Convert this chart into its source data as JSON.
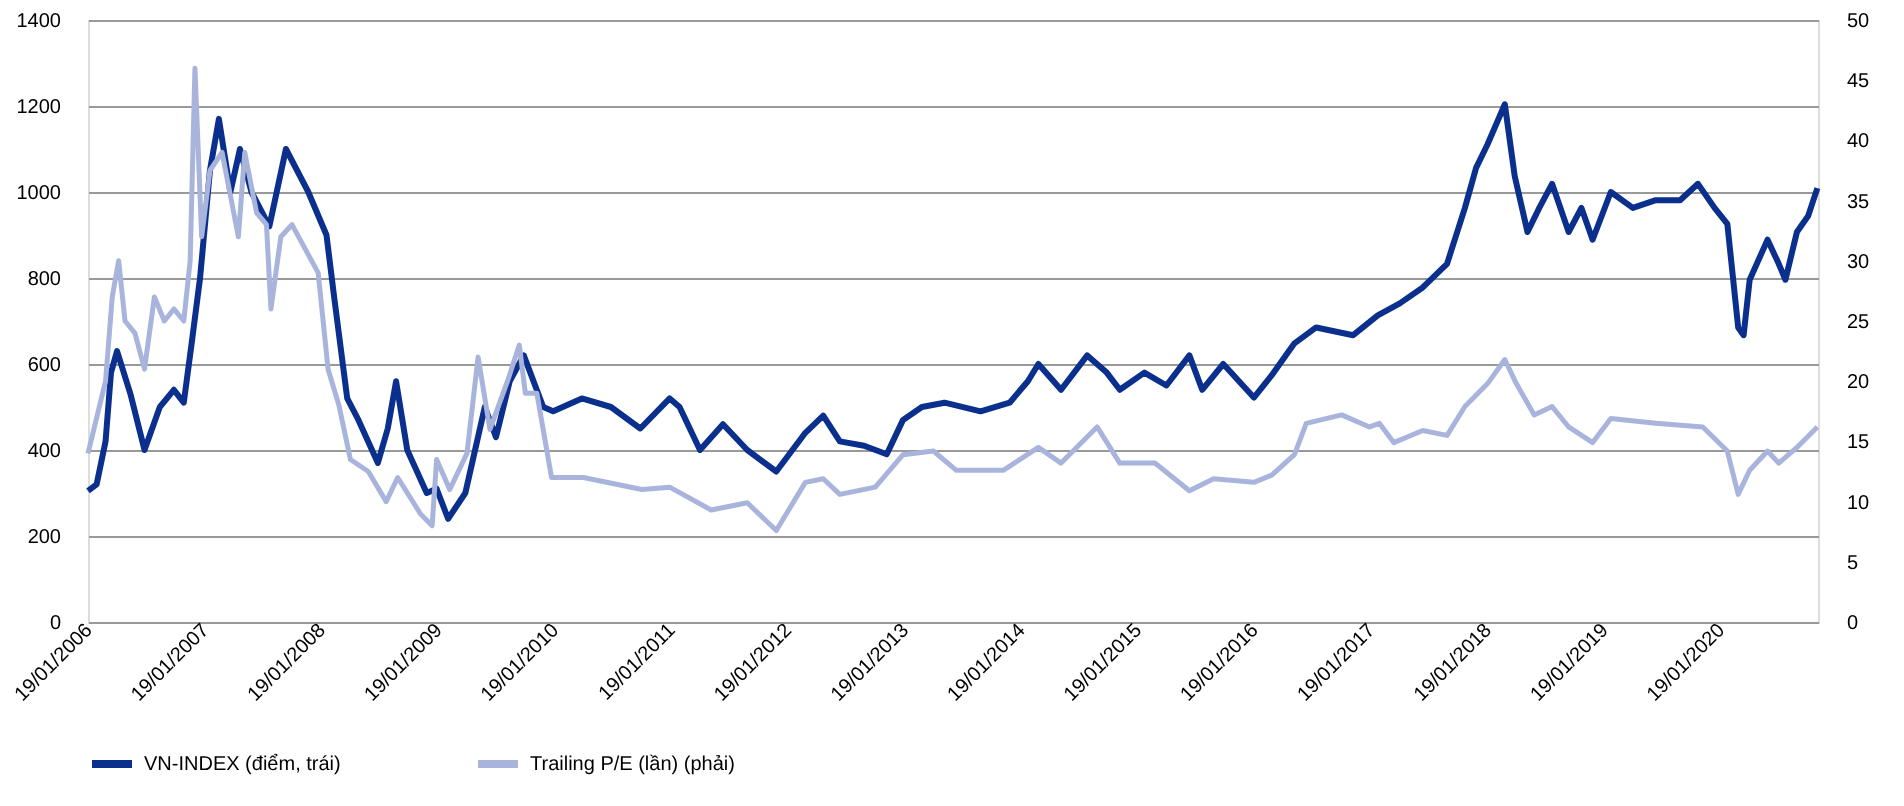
{
  "chart_data": {
    "type": "line",
    "legend": "bottom",
    "grid": "y",
    "line_style": "solid",
    "marker": "none",
    "xlim": [
      "2006-01-19",
      "2020-11-20"
    ],
    "xticks": [
      {
        "value": "2006-01-19",
        "label": "19/01/2006"
      },
      {
        "value": "2007-01-19",
        "label": "19/01/2007"
      },
      {
        "value": "2008-01-19",
        "label": "19/01/2008"
      },
      {
        "value": "2009-01-19",
        "label": "19/01/2009"
      },
      {
        "value": "2010-01-19",
        "label": "19/01/2010"
      },
      {
        "value": "2011-01-19",
        "label": "19/01/2011"
      },
      {
        "value": "2012-01-19",
        "label": "19/01/2012"
      },
      {
        "value": "2013-01-19",
        "label": "19/01/2013"
      },
      {
        "value": "2014-01-19",
        "label": "19/01/2014"
      },
      {
        "value": "2015-01-19",
        "label": "19/01/2015"
      },
      {
        "value": "2016-01-19",
        "label": "19/01/2016"
      },
      {
        "value": "2017-01-19",
        "label": "19/01/2017"
      },
      {
        "value": "2018-01-19",
        "label": "19/01/2018"
      },
      {
        "value": "2019-01-19",
        "label": "19/01/2019"
      },
      {
        "value": "2020-01-19",
        "label": "19/01/2020"
      }
    ],
    "ylim": [
      0,
      1400
    ],
    "yticks": [
      0,
      200,
      400,
      600,
      800,
      1000,
      1200,
      1400
    ],
    "y2lim": [
      0,
      50
    ],
    "y2ticks": [
      0,
      5,
      10,
      15,
      20,
      25,
      30,
      35,
      40,
      45,
      50
    ],
    "series": [
      {
        "name": "VN-INDEX (điểm, trái)",
        "color": "#0a2f8c",
        "axis": "y",
        "x": [
          "2006-01-19",
          "2006-02-15",
          "2006-03-15",
          "2006-04-01",
          "2006-04-20",
          "2006-06-01",
          "2006-07-15",
          "2006-09-01",
          "2006-10-15",
          "2006-11-15",
          "2006-12-10",
          "2007-01-05",
          "2007-02-05",
          "2007-03-05",
          "2007-04-10",
          "2007-05-10",
          "2007-06-15",
          "2007-08-10",
          "2007-10-01",
          "2007-12-10",
          "2008-02-05",
          "2008-03-01",
          "2008-04-10",
          "2008-05-15",
          "2008-07-15",
          "2008-08-15",
          "2008-09-10",
          "2008-10-15",
          "2008-12-15",
          "2009-01-15",
          "2009-02-20",
          "2009-04-15",
          "2009-06-15",
          "2009-07-20",
          "2009-09-01",
          "2009-10-15",
          "2009-12-15",
          "2010-01-15",
          "2010-04-15",
          "2010-07-15",
          "2010-10-15",
          "2011-01-15",
          "2011-02-15",
          "2011-04-20",
          "2011-07-01",
          "2011-09-15",
          "2011-12-15",
          "2012-03-15",
          "2012-05-10",
          "2012-07-01",
          "2012-09-15",
          "2012-11-25",
          "2013-01-15",
          "2013-03-15",
          "2013-05-25",
          "2013-09-15",
          "2013-12-15",
          "2014-02-10",
          "2014-03-15",
          "2014-05-25",
          "2014-08-15",
          "2014-10-15",
          "2014-11-25",
          "2015-02-10",
          "2015-04-20",
          "2015-07-01",
          "2015-08-10",
          "2015-10-15",
          "2016-01-19",
          "2016-03-15",
          "2016-05-25",
          "2016-08-01",
          "2016-11-25",
          "2017-02-10",
          "2017-04-20",
          "2017-07-01",
          "2017-09-15",
          "2017-11-10",
          "2017-12-15",
          "2018-01-20",
          "2018-03-15",
          "2018-04-15",
          "2018-05-25",
          "2018-07-01",
          "2018-08-10",
          "2018-10-01",
          "2018-11-10",
          "2018-12-15",
          "2019-02-10",
          "2019-04-20",
          "2019-07-01",
          "2019-09-15",
          "2019-11-10",
          "2020-01-01",
          "2020-02-10",
          "2020-03-15",
          "2020-04-01",
          "2020-04-20",
          "2020-06-15",
          "2020-07-20",
          "2020-08-10",
          "2020-09-15",
          "2020-10-20",
          "2020-11-18"
        ],
        "values": [
          305,
          320,
          420,
          580,
          630,
          530,
          400,
          500,
          540,
          510,
          650,
          800,
          1050,
          1170,
          1000,
          1100,
          1000,
          920,
          1100,
          1000,
          900,
          750,
          520,
          470,
          370,
          450,
          560,
          400,
          300,
          310,
          240,
          300,
          500,
          430,
          560,
          620,
          500,
          490,
          520,
          500,
          450,
          520,
          500,
          400,
          460,
          400,
          350,
          440,
          480,
          420,
          410,
          390,
          470,
          500,
          510,
          490,
          510,
          560,
          600,
          540,
          620,
          580,
          540,
          580,
          550,
          620,
          540,
          600,
          522,
          574,
          648,
          685,
          667,
          713,
          741,
          778,
          833,
          963,
          1056,
          1111,
          1204,
          1037,
          907,
          963,
          1019,
          907,
          963,
          889,
          1000,
          963,
          981,
          981,
          1019,
          963,
          926,
          685,
          667,
          796,
          889,
          833,
          796,
          907,
          944,
          1009
        ]
      },
      {
        "name": "Trailing P/E (lần) (phải)",
        "color": "#a8b4dc",
        "axis": "y2",
        "x": [
          "2006-01-19",
          "2006-03-15",
          "2006-04-05",
          "2006-04-25",
          "2006-05-15",
          "2006-06-15",
          "2006-07-15",
          "2006-08-15",
          "2006-09-15",
          "2006-10-15",
          "2006-11-15",
          "2006-12-05",
          "2006-12-20",
          "2007-01-10",
          "2007-02-05",
          "2007-03-15",
          "2007-05-05",
          "2007-05-25",
          "2007-07-01",
          "2007-08-01",
          "2007-08-15",
          "2007-09-15",
          "2007-10-20",
          "2008-01-10",
          "2008-02-10",
          "2008-03-15",
          "2008-04-20",
          "2008-06-15",
          "2008-08-10",
          "2008-09-15",
          "2008-11-25",
          "2009-01-01",
          "2009-01-15",
          "2009-02-25",
          "2009-04-20",
          "2009-05-25",
          "2009-07-01",
          "2009-08-25",
          "2009-10-01",
          "2009-10-20",
          "2009-11-25",
          "2010-01-10",
          "2010-04-20",
          "2010-10-20",
          "2011-01-15",
          "2011-05-25",
          "2011-09-15",
          "2011-12-15",
          "2012-03-15",
          "2012-05-10",
          "2012-07-01",
          "2012-10-20",
          "2013-01-15",
          "2013-04-20",
          "2013-07-01",
          "2013-11-25",
          "2014-03-15",
          "2014-05-25",
          "2014-09-15",
          "2014-11-25",
          "2015-03-15",
          "2015-07-01",
          "2015-09-15",
          "2016-01-19",
          "2016-03-15",
          "2016-05-25",
          "2016-07-01",
          "2016-10-20",
          "2017-01-15",
          "2017-02-15",
          "2017-04-01",
          "2017-07-01",
          "2017-09-15",
          "2017-11-10",
          "2018-01-20",
          "2018-03-15",
          "2018-04-20",
          "2018-06-15",
          "2018-08-10",
          "2018-10-01",
          "2018-12-15",
          "2019-02-10",
          "2019-07-01",
          "2019-11-25",
          "2020-02-10",
          "2020-03-15",
          "2020-04-20",
          "2020-06-15",
          "2020-07-20",
          "2020-09-15",
          "2020-11-18"
        ],
        "values": [
          14,
          20,
          27,
          30,
          25,
          24,
          21,
          27,
          25,
          26,
          25,
          30,
          46,
          32,
          37.5,
          39,
          32,
          39,
          34,
          33,
          26,
          32,
          33,
          29,
          21,
          18,
          13.5,
          12.5,
          10,
          12,
          9,
          8,
          13.5,
          11,
          14,
          22,
          16,
          20,
          23,
          19,
          19,
          12,
          12,
          11,
          11.2,
          9.3,
          9.9,
          7.6,
          11.6,
          11.9,
          10.6,
          11.2,
          13.9,
          14.2,
          12.6,
          12.6,
          14.5,
          13.2,
          16.2,
          13.2,
          13.2,
          10.9,
          11.9,
          11.6,
          12.2,
          13.9,
          16.5,
          17.2,
          16.2,
          16.5,
          14.9,
          15.9,
          15.5,
          17.9,
          19.8,
          21.8,
          19.8,
          17.2,
          17.9,
          16.2,
          14.9,
          16.9,
          16.5,
          16.2,
          14.2,
          10.6,
          12.6,
          14.2,
          13.2,
          14.5,
          16.2
        ]
      }
    ]
  }
}
